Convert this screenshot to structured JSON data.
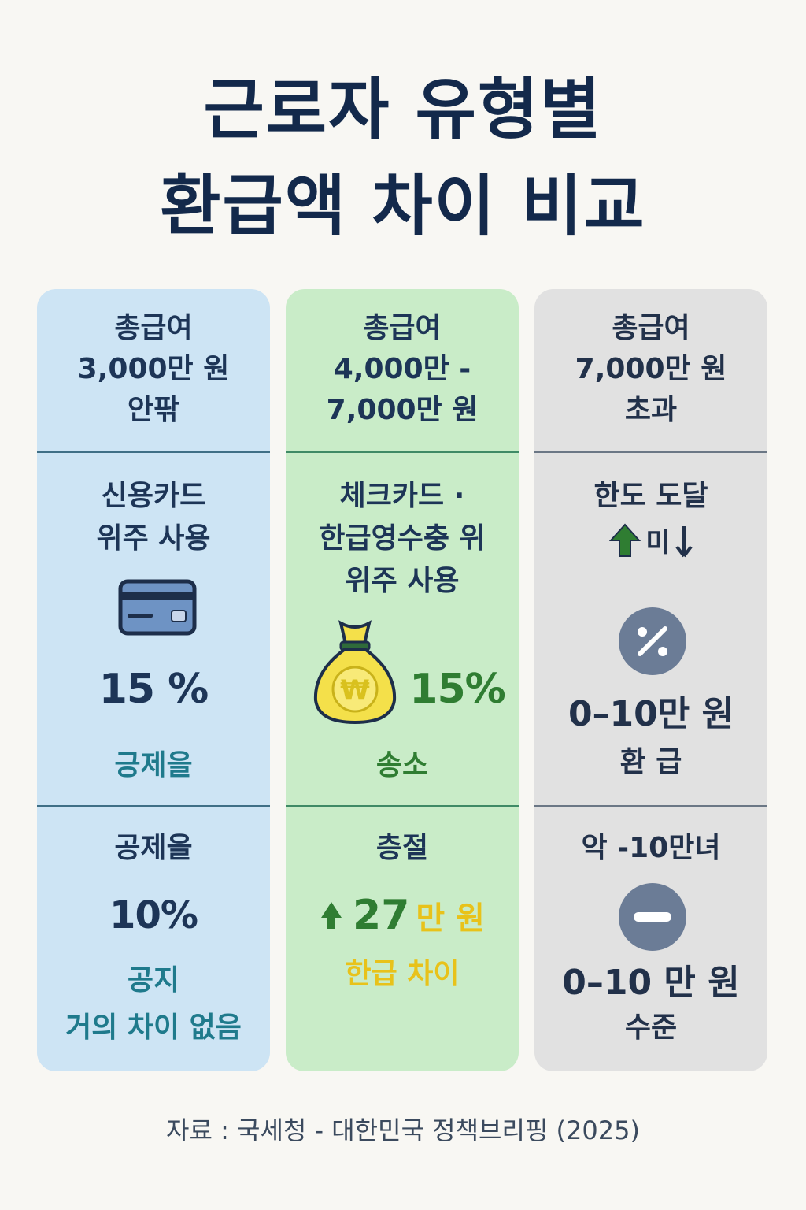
{
  "title": {
    "line1": "근로자 유형별",
    "line2": "환급액 차이 비교"
  },
  "columns": [
    {
      "header": [
        "총급여",
        "3,000만 원",
        "안팎"
      ],
      "usage": [
        "신용카드",
        "위주 사용"
      ],
      "icon": "credit-card-icon",
      "rate": "15 %",
      "rate_label": "긍제을",
      "bottom_title": "공제을",
      "bottom_value": "10%",
      "bottom_note1": "공지",
      "bottom_note2": "거의 차이 없음"
    },
    {
      "header": [
        "총급여",
        "4,000만 -",
        "7,000만 원"
      ],
      "usage": [
        "체크카드 ·",
        "한급영수충 위",
        "위주 사용"
      ],
      "icon": "money-bag-icon",
      "rate": "15%",
      "rate_label": "송소",
      "bottom_title": "층절",
      "bottom_value": "27",
      "bottom_value_unit": "만 원",
      "bottom_note1": "한급 차이"
    },
    {
      "header": [
        "총급여",
        "7,000만 원",
        "초과"
      ],
      "usage": [
        "한도 도달"
      ],
      "usage_arrow_text": "미",
      "icon": "percent-icon",
      "rate": "0–10만 원",
      "rate_label": "환  급",
      "bottom_title": "악 -10만녀",
      "bottom_icon": "minus-icon",
      "bottom_value": "0–10 만 원",
      "bottom_note1": "수준"
    }
  ],
  "footer": "자료 : 국세청 - 대한민국 정책브리핑 (2025)",
  "colors": {
    "title": "#13294b",
    "blue_panel": "#cde4f4",
    "green_panel": "#c9ecc8",
    "gray_panel": "#e1e1e1",
    "teal_text": "#1f7a8c",
    "green_text": "#2f7d32",
    "yellow_text": "#e8c21a"
  }
}
